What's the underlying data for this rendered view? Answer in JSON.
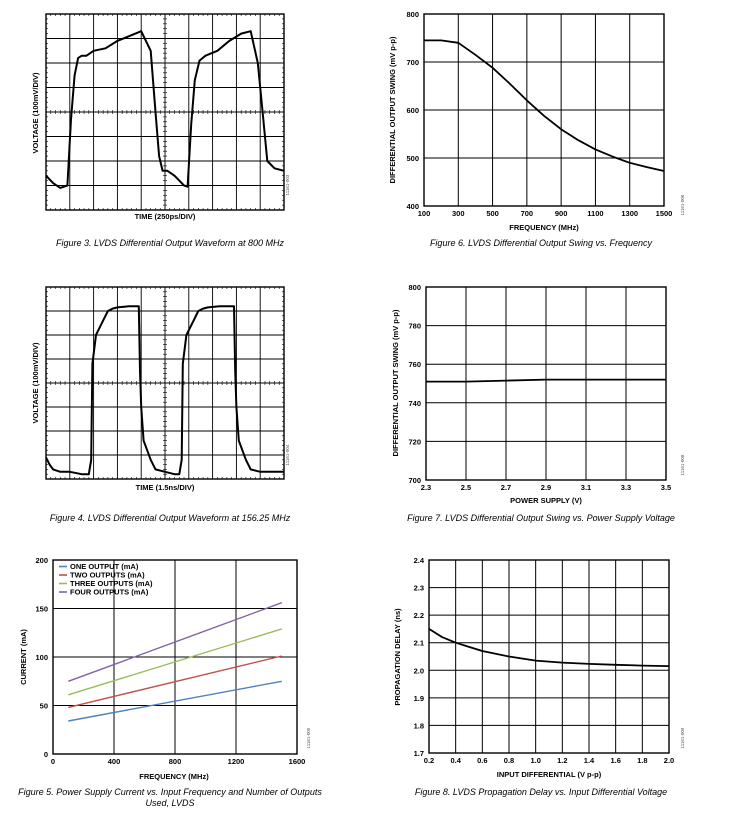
{
  "figures": [
    {
      "id": "fig3",
      "caption": "Figure 3. LVDS Differential Output Waveform at 800 MHz",
      "code": "11161-003",
      "chart_data": {
        "type": "line",
        "title": "",
        "xlabel": "TIME (250ps/DIV)",
        "ylabel": "VOLTAGE (100mV/DIV)",
        "xlim": [
          0,
          10
        ],
        "ylim": [
          -4,
          4
        ],
        "grid": true,
        "series": [
          {
            "name": "",
            "color": "#000000",
            "x": [
              0,
              0.3,
              0.6,
              0.9,
              1.05,
              1.2,
              1.35,
              1.5,
              1.7,
              2.0,
              2.5,
              3.0,
              3.5,
              4.0,
              4.4,
              4.6,
              4.75,
              4.9,
              5.1,
              5.4,
              5.6,
              5.8,
              5.95,
              6.1,
              6.25,
              6.45,
              6.7,
              7.2,
              7.7,
              8.2,
              8.6,
              8.9,
              9.1,
              9.3,
              9.6,
              10
            ],
            "y": [
              -2.6,
              -2.9,
              -3.1,
              -3.0,
              -0.3,
              1.5,
              2.2,
              2.3,
              2.3,
              2.5,
              2.6,
              2.9,
              3.1,
              3.3,
              2.5,
              0.0,
              -1.8,
              -2.4,
              -2.4,
              -2.6,
              -2.8,
              -3.0,
              -3.05,
              -0.5,
              1.3,
              2.1,
              2.3,
              2.5,
              2.9,
              3.2,
              3.3,
              2.0,
              0.0,
              -2.0,
              -2.3,
              -2.4
            ]
          }
        ]
      }
    },
    {
      "id": "fig4",
      "caption": "Figure 4. LVDS Differential Output Waveform at 156.25 MHz",
      "code": "11161-004",
      "chart_data": {
        "type": "line",
        "title": "",
        "xlabel": "TIME (1.5ns/DIV)",
        "ylabel": "VOLTAGE (100mV/DIV)",
        "xlim": [
          0,
          10
        ],
        "ylim": [
          -4,
          4
        ],
        "grid": true,
        "series": [
          {
            "name": "",
            "color": "#000000",
            "x": [
              0,
              0.15,
              0.3,
              0.6,
              1.0,
              1.5,
              1.8,
              1.9,
              1.95,
              2.1,
              2.4,
              2.6,
              2.8,
              3.0,
              3.5,
              3.9,
              3.95,
              4.0,
              4.1,
              4.4,
              4.6,
              5.0,
              5.4,
              5.6,
              5.7,
              5.75,
              5.9,
              6.2,
              6.4,
              6.6,
              6.8,
              7.3,
              7.9,
              7.95,
              8.0,
              8.1,
              8.4,
              8.6,
              9.0,
              9.5,
              10
            ],
            "y": [
              -3.1,
              -3.4,
              -3.6,
              -3.7,
              -3.7,
              -3.8,
              -3.8,
              -3.2,
              0.8,
              2.0,
              2.6,
              3.0,
              3.1,
              3.15,
              3.2,
              3.2,
              0.5,
              -1.0,
              -2.4,
              -3.2,
              -3.6,
              -3.7,
              -3.8,
              -3.8,
              -3.2,
              0.8,
              2.0,
              2.6,
              3.0,
              3.1,
              3.15,
              3.2,
              3.2,
              0.5,
              -1.0,
              -2.4,
              -3.2,
              -3.6,
              -3.7,
              -3.7,
              -3.7
            ]
          }
        ]
      }
    },
    {
      "id": "fig5",
      "caption": "Figure 5. Power Supply Current vs. Input Frequency and Number of Outputs Used, LVDS",
      "caption_lines": [
        "Figure 5. Power Supply Current vs. Input Frequency and Number of Outputs",
        "Used, LVDS"
      ],
      "code": "11161-005",
      "chart_data": {
        "type": "line",
        "title": "",
        "xlabel": "FREQUENCY (MHz)",
        "ylabel": "CURRENT (mA)",
        "xlim": [
          0,
          1600
        ],
        "ylim": [
          0,
          200
        ],
        "xticks": [
          0,
          400,
          800,
          1200,
          1600
        ],
        "yticks": [
          0,
          50,
          100,
          150,
          200
        ],
        "grid": true,
        "legend": "top-left",
        "series": [
          {
            "name": "ONE OUTPUT (mA)",
            "color": "#4f81bd",
            "x": [
              100,
              1500
            ],
            "y": [
              34,
              75
            ]
          },
          {
            "name": "TWO OUTPUTS (mA)",
            "color": "#c0504d",
            "x": [
              100,
              1500
            ],
            "y": [
              48,
              101
            ]
          },
          {
            "name": "THREE OUTPUTS (mA)",
            "color": "#9bbb59",
            "x": [
              100,
              1500
            ],
            "y": [
              61,
              129
            ]
          },
          {
            "name": "FOUR OUTPUTS (mA)",
            "color": "#8064a2",
            "x": [
              100,
              1500
            ],
            "y": [
              75,
              156
            ]
          }
        ]
      }
    },
    {
      "id": "fig6",
      "caption": "Figure 6. LVDS Differential Output Swing vs. Frequency",
      "code": "11161-006",
      "chart_data": {
        "type": "line",
        "title": "",
        "xlabel": "FREQUENCY (MHz)",
        "ylabel": "DIFFERENTIAL OUTPUT SWING (mV p-p)",
        "xlim": [
          100,
          1500
        ],
        "ylim": [
          400,
          800
        ],
        "xticks": [
          100,
          300,
          500,
          700,
          900,
          1100,
          1300,
          1500
        ],
        "yticks": [
          400,
          500,
          600,
          700,
          800
        ],
        "grid": true,
        "series": [
          {
            "name": "",
            "color": "#000000",
            "x": [
              100,
              200,
              300,
              400,
              500,
              600,
              700,
              800,
              900,
              1000,
              1100,
              1200,
              1300,
              1400,
              1500
            ],
            "y": [
              745,
              745,
              740,
              715,
              688,
              655,
              620,
              588,
              560,
              537,
              518,
              503,
              490,
              481,
              473
            ]
          }
        ]
      }
    },
    {
      "id": "fig7",
      "caption": "Figure 7. LVDS Differential Output Swing vs. Power Supply Voltage",
      "code": "11161-008",
      "chart_data": {
        "type": "line",
        "title": "",
        "xlabel": "POWER SUPPLY (V)",
        "ylabel": "DIFFERENTIAL OUTPUT SWING (mV p-p)",
        "xlim": [
          2.3,
          3.5
        ],
        "ylim": [
          700,
          800
        ],
        "xticks": [
          2.3,
          2.5,
          2.7,
          2.9,
          3.1,
          3.3,
          3.5
        ],
        "yticks": [
          700,
          720,
          740,
          760,
          780,
          800
        ],
        "grid": true,
        "series": [
          {
            "name": "",
            "color": "#000000",
            "x": [
              2.3,
              2.5,
              2.7,
              2.9,
              3.1,
              3.3,
              3.5
            ],
            "y": [
              751,
              751,
              751.5,
              752,
              752,
              752,
              752
            ]
          }
        ]
      }
    },
    {
      "id": "fig8",
      "caption": "Figure 8. LVDS Propagation Delay vs. Input Differential Voltage",
      "code": "11161-009",
      "chart_data": {
        "type": "line",
        "title": "",
        "xlabel": "INPUT DIFFERENTIAL (V p-p)",
        "ylabel": "PROPAGATION DELAY (ns)",
        "xlim": [
          0.2,
          2.0
        ],
        "ylim": [
          1.7,
          2.4
        ],
        "xticks": [
          0.2,
          0.4,
          0.6,
          0.8,
          1.0,
          1.2,
          1.4,
          1.6,
          1.8,
          2.0
        ],
        "yticks": [
          1.7,
          1.8,
          1.9,
          2.0,
          2.1,
          2.2,
          2.3,
          2.4
        ],
        "grid": true,
        "series": [
          {
            "name": "",
            "color": "#000000",
            "x": [
              0.2,
              0.3,
              0.4,
              0.5,
              0.6,
              0.8,
              1.0,
              1.2,
              1.4,
              1.6,
              1.8,
              2.0
            ],
            "y": [
              2.15,
              2.12,
              2.1,
              2.085,
              2.07,
              2.05,
              2.035,
              2.028,
              2.023,
              2.02,
              2.017,
              2.015
            ]
          }
        ]
      }
    }
  ]
}
